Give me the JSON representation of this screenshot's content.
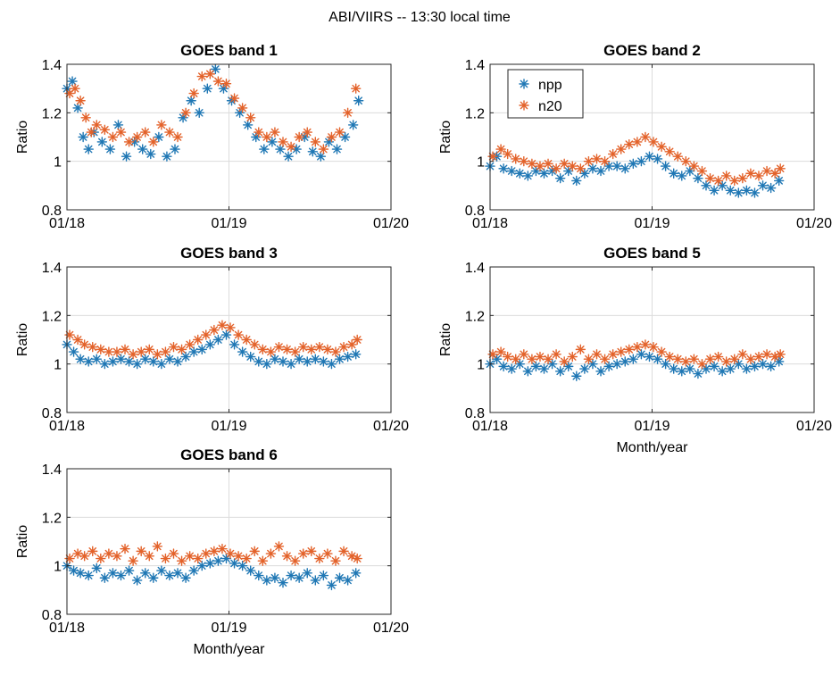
{
  "figure_title": "ABI/VIIRS -- 13:30 local time",
  "colors": {
    "npp": "#1f77b4",
    "n20": "#e3622a"
  },
  "chart_data": [
    {
      "type": "scatter",
      "title": "GOES band 1",
      "ylabel": "Ratio",
      "xlabel": "",
      "xlim": [
        0,
        24
      ],
      "ylim": [
        0.8,
        1.4
      ],
      "xticks": [
        0,
        12,
        24
      ],
      "xtick_labels": [
        "01/18",
        "01/19",
        "01/20"
      ],
      "yticks": [
        0.8,
        1,
        1.2,
        1.4
      ],
      "ytick_labels": [
        "0.8",
        "1",
        "1.2",
        "1.4"
      ],
      "legend": null,
      "series": [
        {
          "name": "npp",
          "x": [
            0.0,
            0.4,
            0.8,
            1.2,
            1.6,
            2.0,
            2.6,
            3.2,
            3.8,
            4.4,
            5.0,
            5.6,
            6.2,
            6.8,
            7.4,
            8.0,
            8.6,
            9.2,
            9.8,
            10.4,
            11.0,
            11.6,
            12.2,
            12.8,
            13.4,
            14.0,
            14.6,
            15.2,
            15.8,
            16.4,
            17.0,
            17.6,
            18.2,
            18.8,
            19.4,
            20.0,
            20.6,
            21.2,
            21.6
          ],
          "y": [
            1.3,
            1.33,
            1.22,
            1.1,
            1.05,
            1.12,
            1.08,
            1.05,
            1.15,
            1.02,
            1.08,
            1.05,
            1.03,
            1.1,
            1.02,
            1.05,
            1.18,
            1.25,
            1.2,
            1.3,
            1.38,
            1.3,
            1.25,
            1.2,
            1.15,
            1.1,
            1.05,
            1.08,
            1.05,
            1.02,
            1.05,
            1.1,
            1.04,
            1.02,
            1.08,
            1.05,
            1.1,
            1.15,
            1.25
          ]
        },
        {
          "name": "n20",
          "x": [
            0.2,
            0.6,
            1.0,
            1.4,
            1.8,
            2.2,
            2.8,
            3.4,
            4.0,
            4.6,
            5.2,
            5.8,
            6.4,
            7.0,
            7.6,
            8.2,
            8.8,
            9.4,
            10.0,
            10.6,
            11.2,
            11.8,
            12.4,
            13.0,
            13.6,
            14.2,
            14.8,
            15.4,
            16.0,
            16.6,
            17.2,
            17.8,
            18.4,
            19.0,
            19.6,
            20.2,
            20.8,
            21.4
          ],
          "y": [
            1.28,
            1.3,
            1.25,
            1.18,
            1.12,
            1.15,
            1.13,
            1.1,
            1.12,
            1.08,
            1.1,
            1.12,
            1.08,
            1.15,
            1.12,
            1.1,
            1.2,
            1.28,
            1.35,
            1.36,
            1.33,
            1.32,
            1.26,
            1.22,
            1.18,
            1.12,
            1.1,
            1.12,
            1.08,
            1.06,
            1.1,
            1.12,
            1.08,
            1.05,
            1.1,
            1.12,
            1.2,
            1.3
          ]
        }
      ]
    },
    {
      "type": "scatter",
      "title": "GOES band 2",
      "ylabel": "Ratio",
      "xlabel": "",
      "xlim": [
        0,
        24
      ],
      "ylim": [
        0.8,
        1.4
      ],
      "xticks": [
        0,
        12,
        24
      ],
      "xtick_labels": [
        "01/18",
        "01/19",
        "01/20"
      ],
      "yticks": [
        0.8,
        1,
        1.2,
        1.4
      ],
      "ytick_labels": [
        "0.8",
        "1",
        "1.2",
        "1.4"
      ],
      "legend": "top-left",
      "series": [
        {
          "name": "npp",
          "x": [
            0.0,
            0.5,
            1.0,
            1.6,
            2.2,
            2.8,
            3.4,
            4.0,
            4.6,
            5.2,
            5.8,
            6.4,
            7.0,
            7.6,
            8.2,
            8.8,
            9.4,
            10.0,
            10.6,
            11.2,
            11.8,
            12.4,
            13.0,
            13.6,
            14.2,
            14.8,
            15.4,
            16.0,
            16.6,
            17.2,
            17.8,
            18.4,
            19.0,
            19.6,
            20.2,
            20.8,
            21.4
          ],
          "y": [
            0.98,
            1.02,
            0.97,
            0.96,
            0.95,
            0.94,
            0.96,
            0.95,
            0.96,
            0.93,
            0.96,
            0.92,
            0.95,
            0.97,
            0.96,
            0.98,
            0.98,
            0.97,
            0.99,
            1.0,
            1.02,
            1.01,
            0.98,
            0.95,
            0.94,
            0.96,
            0.93,
            0.9,
            0.88,
            0.9,
            0.88,
            0.87,
            0.88,
            0.87,
            0.9,
            0.89,
            0.92
          ]
        },
        {
          "name": "n20",
          "x": [
            0.2,
            0.8,
            1.3,
            1.9,
            2.5,
            3.1,
            3.7,
            4.3,
            4.9,
            5.5,
            6.1,
            6.7,
            7.3,
            7.9,
            8.5,
            9.1,
            9.7,
            10.3,
            10.9,
            11.5,
            12.1,
            12.7,
            13.3,
            13.9,
            14.5,
            15.1,
            15.7,
            16.3,
            16.9,
            17.5,
            18.1,
            18.7,
            19.3,
            19.9,
            20.5,
            21.1,
            21.5
          ],
          "y": [
            1.02,
            1.05,
            1.03,
            1.01,
            1.0,
            0.99,
            0.98,
            0.99,
            0.97,
            0.99,
            0.98,
            0.97,
            1.0,
            1.01,
            1.0,
            1.03,
            1.05,
            1.07,
            1.08,
            1.1,
            1.08,
            1.06,
            1.04,
            1.02,
            1.0,
            0.98,
            0.96,
            0.93,
            0.92,
            0.94,
            0.92,
            0.93,
            0.95,
            0.94,
            0.96,
            0.95,
            0.97
          ]
        }
      ]
    },
    {
      "type": "scatter",
      "title": "GOES band 3",
      "ylabel": "Ratio",
      "xlabel": "",
      "xlim": [
        0,
        24
      ],
      "ylim": [
        0.8,
        1.4
      ],
      "xticks": [
        0,
        12,
        24
      ],
      "xtick_labels": [
        "01/18",
        "01/19",
        "01/20"
      ],
      "yticks": [
        0.8,
        1,
        1.2,
        1.4
      ],
      "ytick_labels": [
        "0.8",
        "1",
        "1.2",
        "1.4"
      ],
      "legend": null,
      "series": [
        {
          "name": "npp",
          "x": [
            0.0,
            0.5,
            1.0,
            1.6,
            2.2,
            2.8,
            3.4,
            4.0,
            4.6,
            5.2,
            5.8,
            6.4,
            7.0,
            7.6,
            8.2,
            8.8,
            9.4,
            10.0,
            10.6,
            11.2,
            11.8,
            12.4,
            13.0,
            13.6,
            14.2,
            14.8,
            15.4,
            16.0,
            16.6,
            17.2,
            17.8,
            18.4,
            19.0,
            19.6,
            20.2,
            20.8,
            21.4
          ],
          "y": [
            1.08,
            1.05,
            1.02,
            1.01,
            1.02,
            1.0,
            1.01,
            1.02,
            1.01,
            1.0,
            1.02,
            1.01,
            1.0,
            1.02,
            1.01,
            1.03,
            1.05,
            1.06,
            1.08,
            1.1,
            1.12,
            1.08,
            1.05,
            1.03,
            1.01,
            1.0,
            1.02,
            1.01,
            1.0,
            1.02,
            1.01,
            1.02,
            1.01,
            1.0,
            1.02,
            1.03,
            1.04
          ]
        },
        {
          "name": "n20",
          "x": [
            0.2,
            0.8,
            1.3,
            1.9,
            2.5,
            3.1,
            3.7,
            4.3,
            4.9,
            5.5,
            6.1,
            6.7,
            7.3,
            7.9,
            8.5,
            9.1,
            9.7,
            10.3,
            10.9,
            11.5,
            12.1,
            12.7,
            13.3,
            13.9,
            14.5,
            15.1,
            15.7,
            16.3,
            16.9,
            17.5,
            18.1,
            18.7,
            19.3,
            19.9,
            20.5,
            21.1,
            21.5
          ],
          "y": [
            1.12,
            1.1,
            1.08,
            1.07,
            1.06,
            1.05,
            1.05,
            1.06,
            1.04,
            1.05,
            1.06,
            1.04,
            1.05,
            1.07,
            1.06,
            1.08,
            1.1,
            1.12,
            1.14,
            1.16,
            1.15,
            1.12,
            1.1,
            1.08,
            1.06,
            1.05,
            1.07,
            1.06,
            1.05,
            1.07,
            1.06,
            1.07,
            1.06,
            1.05,
            1.07,
            1.08,
            1.1
          ]
        }
      ]
    },
    {
      "type": "scatter",
      "title": "GOES band 5",
      "ylabel": "Ratio",
      "xlabel": "Month/year",
      "xlim": [
        0,
        24
      ],
      "ylim": [
        0.8,
        1.4
      ],
      "xticks": [
        0,
        12,
        24
      ],
      "xtick_labels": [
        "01/18",
        "01/19",
        "01/20"
      ],
      "yticks": [
        0.8,
        1,
        1.2,
        1.4
      ],
      "ytick_labels": [
        "0.8",
        "1",
        "1.2",
        "1.4"
      ],
      "legend": null,
      "series": [
        {
          "name": "npp",
          "x": [
            0.0,
            0.5,
            1.0,
            1.6,
            2.2,
            2.8,
            3.4,
            4.0,
            4.6,
            5.2,
            5.8,
            6.4,
            7.0,
            7.6,
            8.2,
            8.8,
            9.4,
            10.0,
            10.6,
            11.2,
            11.8,
            12.4,
            13.0,
            13.6,
            14.2,
            14.8,
            15.4,
            16.0,
            16.6,
            17.2,
            17.8,
            18.4,
            19.0,
            19.6,
            20.2,
            20.8,
            21.4
          ],
          "y": [
            1.0,
            1.02,
            0.99,
            0.98,
            1.0,
            0.97,
            0.99,
            0.98,
            1.0,
            0.97,
            0.99,
            0.95,
            0.98,
            1.0,
            0.97,
            0.99,
            1.0,
            1.01,
            1.02,
            1.04,
            1.03,
            1.02,
            1.0,
            0.98,
            0.97,
            0.98,
            0.96,
            0.98,
            0.99,
            0.97,
            0.98,
            1.0,
            0.98,
            0.99,
            1.0,
            0.99,
            1.01
          ]
        },
        {
          "name": "n20",
          "x": [
            0.2,
            0.8,
            1.3,
            1.9,
            2.5,
            3.1,
            3.7,
            4.3,
            4.9,
            5.5,
            6.1,
            6.7,
            7.3,
            7.9,
            8.5,
            9.1,
            9.7,
            10.3,
            10.9,
            11.5,
            12.1,
            12.7,
            13.3,
            13.9,
            14.5,
            15.1,
            15.7,
            16.3,
            16.9,
            17.5,
            18.1,
            18.7,
            19.3,
            19.9,
            20.5,
            21.1,
            21.5
          ],
          "y": [
            1.04,
            1.05,
            1.03,
            1.02,
            1.04,
            1.02,
            1.03,
            1.02,
            1.04,
            1.01,
            1.03,
            1.06,
            1.02,
            1.04,
            1.02,
            1.04,
            1.05,
            1.06,
            1.07,
            1.08,
            1.07,
            1.05,
            1.03,
            1.02,
            1.01,
            1.02,
            1.0,
            1.02,
            1.03,
            1.01,
            1.02,
            1.04,
            1.02,
            1.03,
            1.04,
            1.03,
            1.04
          ]
        }
      ]
    },
    {
      "type": "scatter",
      "title": "GOES band 6",
      "ylabel": "Ratio",
      "xlabel": "Month/year",
      "xlim": [
        0,
        24
      ],
      "ylim": [
        0.8,
        1.4
      ],
      "xticks": [
        0,
        12,
        24
      ],
      "xtick_labels": [
        "01/18",
        "01/19",
        "01/20"
      ],
      "yticks": [
        0.8,
        1,
        1.2,
        1.4
      ],
      "ytick_labels": [
        "0.8",
        "1",
        "1.2",
        "1.4"
      ],
      "legend": null,
      "series": [
        {
          "name": "npp",
          "x": [
            0.0,
            0.5,
            1.0,
            1.6,
            2.2,
            2.8,
            3.4,
            4.0,
            4.6,
            5.2,
            5.8,
            6.4,
            7.0,
            7.6,
            8.2,
            8.8,
            9.4,
            10.0,
            10.6,
            11.2,
            11.8,
            12.4,
            13.0,
            13.6,
            14.2,
            14.8,
            15.4,
            16.0,
            16.6,
            17.2,
            17.8,
            18.4,
            19.0,
            19.6,
            20.2,
            20.8,
            21.4
          ],
          "y": [
            1.0,
            0.98,
            0.97,
            0.96,
            0.99,
            0.95,
            0.97,
            0.96,
            0.98,
            0.94,
            0.97,
            0.95,
            0.98,
            0.96,
            0.97,
            0.95,
            0.98,
            1.0,
            1.01,
            1.02,
            1.03,
            1.01,
            1.0,
            0.98,
            0.96,
            0.94,
            0.95,
            0.93,
            0.96,
            0.95,
            0.97,
            0.94,
            0.96,
            0.92,
            0.95,
            0.94,
            0.97
          ]
        },
        {
          "name": "n20",
          "x": [
            0.2,
            0.8,
            1.3,
            1.9,
            2.5,
            3.1,
            3.7,
            4.3,
            4.9,
            5.5,
            6.1,
            6.7,
            7.3,
            7.9,
            8.5,
            9.1,
            9.7,
            10.3,
            10.9,
            11.5,
            12.1,
            12.7,
            13.3,
            13.9,
            14.5,
            15.1,
            15.7,
            16.3,
            16.9,
            17.5,
            18.1,
            18.7,
            19.3,
            19.9,
            20.5,
            21.1,
            21.5
          ],
          "y": [
            1.03,
            1.05,
            1.04,
            1.06,
            1.03,
            1.05,
            1.04,
            1.07,
            1.02,
            1.06,
            1.04,
            1.08,
            1.03,
            1.05,
            1.02,
            1.04,
            1.03,
            1.05,
            1.06,
            1.07,
            1.05,
            1.04,
            1.03,
            1.06,
            1.02,
            1.05,
            1.08,
            1.04,
            1.02,
            1.05,
            1.06,
            1.03,
            1.05,
            1.02,
            1.06,
            1.04,
            1.03
          ]
        }
      ]
    }
  ]
}
